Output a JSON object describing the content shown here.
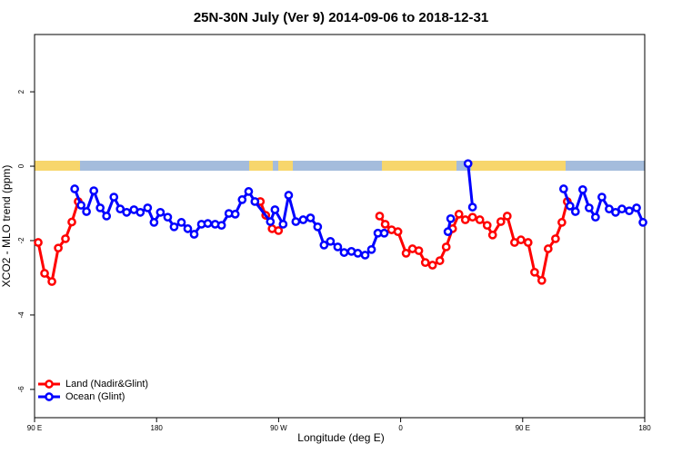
{
  "chart_data": {
    "type": "line",
    "title": "25N-30N July (Ver 9)   2014-09-06 to 2018-12-31",
    "x_label": "Longitude (deg E)",
    "y_label": "XCO2 - MLO trend (ppm)",
    "xlim": [
      90,
      540
    ],
    "ylim": [
      -6.76,
      3.54
    ],
    "xticks": [
      {
        "value": 90,
        "label": "90 E"
      },
      {
        "value": 180,
        "label": "180"
      },
      {
        "value": 270,
        "label": "90 W"
      },
      {
        "value": 360,
        "label": "0"
      },
      {
        "value": 450,
        "label": "90 E"
      },
      {
        "value": 540,
        "label": "180"
      }
    ],
    "yticks": [
      2,
      0,
      -2,
      -4,
      -6
    ],
    "legend": "lower left",
    "series": [
      {
        "name": "Land (Nadir&Glint)",
        "color": "#ff0000",
        "x": [
          92.7,
          97.4,
          102.8,
          107.5,
          112.8,
          117.5,
          122.2,
          null,
          256.5,
          260.5,
          265.2,
          269.9,
          null,
          344.5,
          348.6,
          353.3,
          358,
          364,
          368.7,
          373.4,
          378.2,
          383.5,
          388.9,
          393.6,
          398.3,
          403,
          407.7,
          413,
          418.4,
          423.8,
          427.8,
          433.9,
          438.6,
          444,
          448.7,
          454,
          458.8,
          464.1,
          468.8,
          474.2,
          478.9,
          482.9
        ],
        "values": [
          -2.05,
          -2.88,
          -3.1,
          -2.2,
          -1.95,
          -1.5,
          -0.95,
          null,
          -0.95,
          -1.32,
          -1.68,
          -1.73,
          null,
          -1.34,
          -1.56,
          -1.71,
          -1.76,
          -2.34,
          -2.22,
          -2.27,
          -2.59,
          -2.66,
          -2.54,
          -2.17,
          -1.68,
          -1.29,
          -1.44,
          -1.37,
          -1.44,
          -1.59,
          -1.85,
          -1.49,
          -1.34,
          -2.05,
          -1.98,
          -2.05,
          -2.85,
          -3.07,
          -2.22,
          -1.95,
          -1.51,
          -0.95
        ]
      },
      {
        "name": "Ocean (Glint)",
        "color": "#0000ff",
        "x": [
          119.6,
          124.3,
          128.3,
          133.7,
          138.4,
          143.1,
          148.5,
          153.2,
          157.9,
          163.3,
          168,
          173.4,
          178.1,
          182.8,
          188.2,
          192.9,
          198.3,
          203,
          207.7,
          213.1,
          217.8,
          223.2,
          227.9,
          233.3,
          238,
          243.1,
          247.9,
          252.5,
          263.9,
          267.3,
          273.3,
          277.4,
          282.7,
          288.1,
          293.5,
          298.8,
          303.5,
          308.2,
          313.6,
          318.3,
          323.7,
          328.4,
          333.8,
          338.5,
          343.2,
          347.9,
          null,
          394.9,
          396.9,
          null,
          409.7,
          413,
          null,
          480.2,
          484.9,
          488.9,
          494.3,
          499,
          503.7,
          508.4,
          513.8,
          518.5,
          523.2,
          528.6,
          534,
          538.7
        ],
        "values": [
          -0.61,
          -1.05,
          -1.22,
          -0.66,
          -1.12,
          -1.34,
          -0.83,
          -1.15,
          -1.24,
          -1.17,
          -1.24,
          -1.12,
          -1.51,
          -1.24,
          -1.37,
          -1.63,
          -1.51,
          -1.68,
          -1.83,
          -1.56,
          -1.54,
          -1.56,
          -1.59,
          -1.27,
          -1.29,
          -0.9,
          -0.68,
          -0.95,
          -1.49,
          -1.17,
          -1.56,
          -0.78,
          -1.49,
          -1.44,
          -1.39,
          -1.63,
          -2.12,
          -2.02,
          -2.17,
          -2.32,
          -2.29,
          -2.34,
          -2.39,
          -2.24,
          -1.8,
          -1.8,
          null,
          -1.76,
          -1.41,
          null,
          0.07,
          -1.1,
          null,
          -0.61,
          -1.07,
          -1.22,
          -0.63,
          -1.12,
          -1.37,
          -0.83,
          -1.15,
          -1.24,
          -1.15,
          -1.2,
          -1.12,
          -1.51
        ]
      }
    ]
  }
}
